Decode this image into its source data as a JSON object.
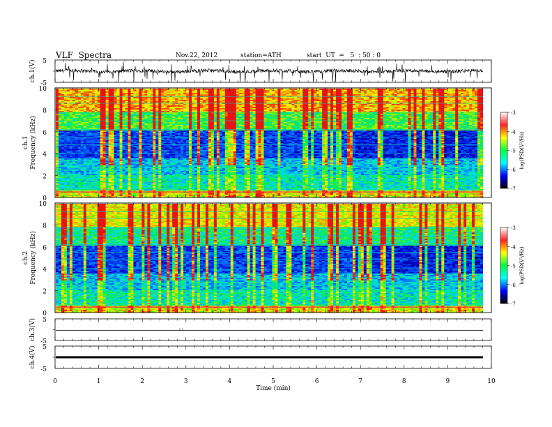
{
  "header": {
    "title": "VLF  Spectra",
    "date": "Nov.22, 2012",
    "station": "station=ATH",
    "start": "start  UT  =   5  : 50 : 0"
  },
  "colorbar": {
    "label": "log(PSD(V²/Hz)",
    "ticks": [
      "-3",
      "-4",
      "-5",
      "-6",
      "-7"
    ],
    "stops": [
      "#ffffff",
      "#ff2020",
      "#ffff00",
      "#00ff40",
      "#00ffff",
      "#0000ff",
      "#000000"
    ]
  },
  "chart_data": [
    {
      "type": "line",
      "ylabel": "ch.1(V)",
      "yticks": [
        "5",
        "-5"
      ],
      "ylim": [
        -5,
        5
      ],
      "xlim": [
        0,
        10
      ],
      "description_of_signal": "noisy trace centred near 0 V with frequent negative spikes"
    },
    {
      "type": "heatmap",
      "ylabel": "ch.1\nFrequency  (kHz)",
      "ylim": [
        0,
        10
      ],
      "yticks": [
        "10",
        "8",
        "6",
        "4",
        "2",
        "0"
      ],
      "xlim": [
        0,
        9.8
      ],
      "value_range": [
        -7,
        -3
      ]
    },
    {
      "type": "heatmap",
      "ylabel": "ch.2\nFrequency  (kHz)",
      "ylim": [
        0,
        10
      ],
      "yticks": [
        "10",
        "8",
        "6",
        "4",
        "2",
        "0"
      ],
      "xlim": [
        0,
        9.8
      ],
      "value_range": [
        -7,
        -3
      ]
    },
    {
      "type": "line",
      "ylabel": "ch.3(V)",
      "yticks": [
        "5",
        "-5"
      ],
      "ylim": [
        -5,
        5
      ],
      "xlim": [
        0,
        10
      ]
    },
    {
      "type": "line",
      "ylabel": "ch.4(V)",
      "yticks": [
        "5",
        "-5"
      ],
      "ylim": [
        -5,
        5
      ],
      "xlim": [
        0,
        10
      ]
    }
  ],
  "xaxis": {
    "label": "Time  (min)",
    "ticks": [
      "0",
      "1",
      "2",
      "3",
      "4",
      "5",
      "6",
      "7",
      "8",
      "9",
      "10"
    ]
  }
}
